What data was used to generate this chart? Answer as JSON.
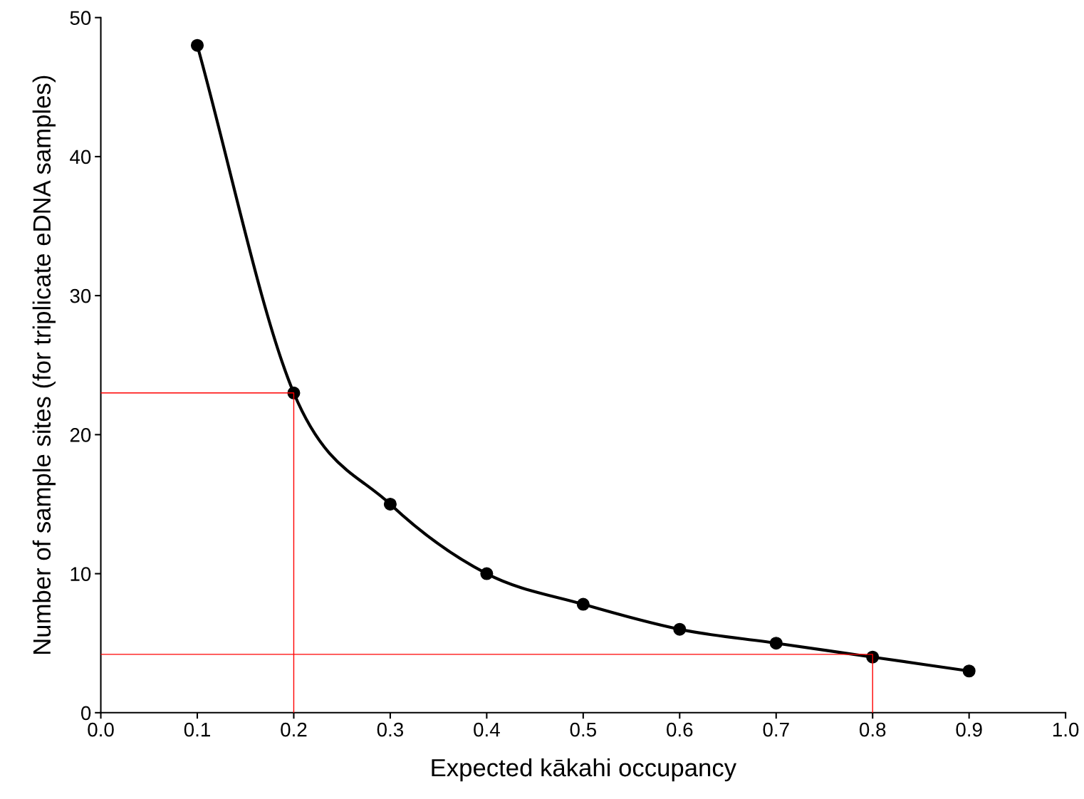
{
  "chart_data": {
    "type": "line",
    "xlabel": "Expected kākahi occupancy",
    "ylabel": "Number of sample sites (for triplicate eDNA samples)",
    "xlim": [
      0,
      1
    ],
    "ylim": [
      0,
      50
    ],
    "xticks": [
      {
        "value": 0,
        "label": "0.0"
      },
      0.1,
      0.2,
      0.3,
      0.4,
      0.5,
      0.6,
      0.7,
      0.8,
      0.9,
      {
        "value": 1,
        "label": "1.0"
      }
    ],
    "yticks": [
      0,
      10,
      20,
      30,
      40,
      50
    ],
    "grid": false,
    "legend": false,
    "marker": "circle",
    "line_style": "solid",
    "series": [
      {
        "color": "#000000",
        "x": [
          0.1,
          0.2,
          0.3,
          0.4,
          0.5,
          0.6,
          0.7,
          0.8,
          0.9
        ],
        "values": [
          48,
          23,
          15,
          10,
          7.8,
          6,
          5,
          4,
          3
        ]
      },
      {
        "color": "#ff0000",
        "marker": "none",
        "x": [
          0,
          0.2,
          0.2
        ],
        "values": [
          23,
          23,
          0
        ]
      },
      {
        "color": "#ff0000",
        "marker": "none",
        "x": [
          0,
          0.8,
          0.8
        ],
        "values": [
          4.2,
          4.2,
          0
        ]
      }
    ]
  }
}
